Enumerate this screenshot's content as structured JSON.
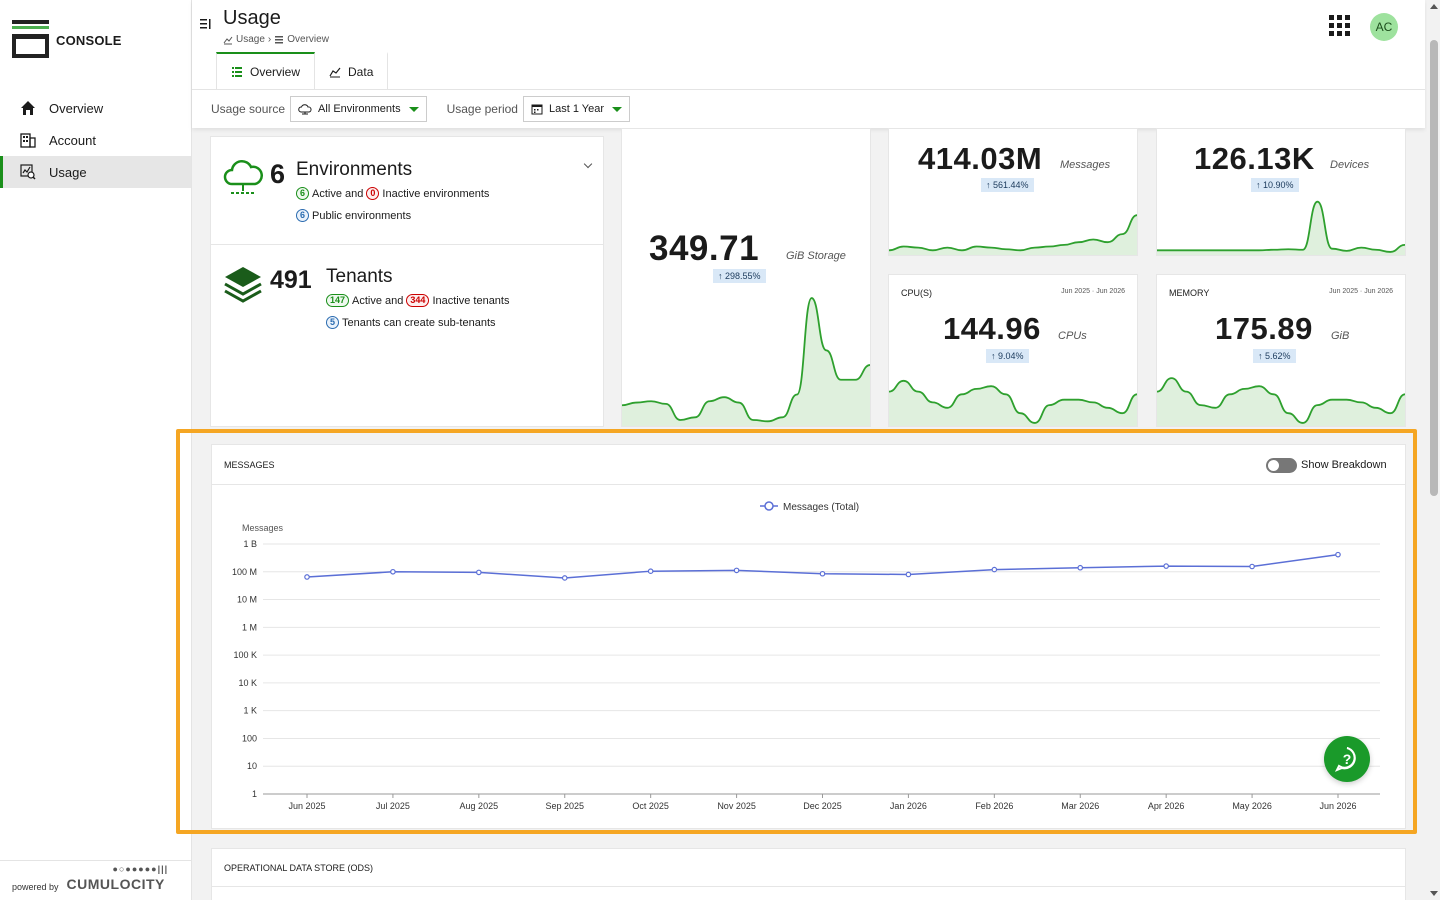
{
  "brand": {
    "name": "CONSOLE"
  },
  "sidebar": {
    "items": [
      {
        "label": "Overview",
        "icon": "home-icon"
      },
      {
        "label": "Account",
        "icon": "building-icon"
      },
      {
        "label": "Usage",
        "icon": "usage-chart-icon",
        "active": true
      }
    ],
    "powered_by": "powered by",
    "vendor": "CUMULOCITY",
    "vendor_dots": "●○●●●●●|||"
  },
  "header": {
    "title": "Usage",
    "breadcrumb": [
      "Usage",
      "Overview"
    ],
    "avatar_initials": "AC"
  },
  "tabs": [
    {
      "label": "Overview",
      "active": true
    },
    {
      "label": "Data",
      "active": false
    }
  ],
  "filters": {
    "source_label": "Usage source",
    "source_value": "All Environments",
    "period_label": "Usage period",
    "period_value": "Last 1 Year"
  },
  "environments": {
    "count": "6",
    "label": "Environments",
    "active_count": "6",
    "active_text": "Active and",
    "inactive_count": "0",
    "inactive_text": "Inactive environments",
    "public_count": "6",
    "public_text": "Public environments"
  },
  "tenants": {
    "count": "491",
    "label": "Tenants",
    "active_count": "147",
    "active_text": "Active and",
    "inactive_count": "344",
    "inactive_text": "Inactive tenants",
    "sub_count": "5",
    "sub_text": "Tenants can create sub-tenants"
  },
  "storage": {
    "value": "349.71",
    "unit": "GiB Storage",
    "change": "298.55%",
    "spark": [
      0.14,
      0.16,
      0.17,
      0.15,
      0.03,
      0.05,
      0.17,
      0.2,
      0.16,
      0.03,
      0.02,
      0.05,
      0.22,
      0.94,
      0.55,
      0.33,
      0.33,
      0.44
    ]
  },
  "messages_metric": {
    "value": "414.03M",
    "unit": "Messages",
    "change": "561.44%",
    "spark": [
      0.05,
      0.12,
      0.1,
      0.05,
      0.1,
      0.05,
      0.12,
      0.1,
      0.07,
      0.05,
      0.1,
      0.12,
      0.15,
      0.2,
      0.25,
      0.2,
      0.35,
      0.7
    ]
  },
  "devices_metric": {
    "value": "126.13K",
    "unit": "Devices",
    "change": "10.90%",
    "spark": [
      0.05,
      0.05,
      0.05,
      0.05,
      0.05,
      0.05,
      0.05,
      0.05,
      0.06,
      0.07,
      0.06,
      0.95,
      0.08,
      0.04,
      0.1,
      0.06,
      0.02,
      0.15
    ]
  },
  "cpu_metric": {
    "title": "CPU(S)",
    "range": "Jun 2025 · Jun 2026",
    "value": "144.96",
    "unit": "CPUs",
    "change": "9.04%",
    "spark": [
      0.6,
      0.8,
      0.6,
      0.4,
      0.3,
      0.55,
      0.65,
      0.7,
      0.55,
      0.2,
      0.02,
      0.35,
      0.45,
      0.45,
      0.4,
      0.3,
      0.2,
      0.55
    ]
  },
  "memory_metric": {
    "title": "MEMORY",
    "range": "Jun 2025 · Jun 2026",
    "value": "175.89",
    "unit": "GiB",
    "change": "5.62%",
    "spark": [
      0.6,
      0.85,
      0.6,
      0.35,
      0.3,
      0.55,
      0.65,
      0.7,
      0.55,
      0.2,
      0.02,
      0.35,
      0.45,
      0.45,
      0.4,
      0.3,
      0.2,
      0.55
    ]
  },
  "messages_chart": {
    "title": "MESSAGES",
    "toggle_label": "Show Breakdown"
  },
  "ods": {
    "title": "OPERATIONAL DATA STORE (ODS)"
  },
  "chart_data": {
    "type": "line",
    "title": "",
    "ylabel": "Messages",
    "xlabel": "",
    "y_scale": "log",
    "ylim": [
      1,
      1000000000
    ],
    "y_ticks": [
      "1",
      "10",
      "100",
      "1 K",
      "10 K",
      "100 K",
      "1 M",
      "10 M",
      "100 M",
      "1 B"
    ],
    "categories": [
      "Jun 2025",
      "Jul 2025",
      "Aug 2025",
      "Sep 2025",
      "Oct 2025",
      "Nov 2025",
      "Dec 2025",
      "Jan 2026",
      "Feb 2026",
      "Mar 2026",
      "Apr 2026",
      "May 2026",
      "Jun 2026"
    ],
    "series": [
      {
        "name": "Messages (Total)",
        "color": "#5b6fd6",
        "values": [
          65000000,
          100000000,
          95000000,
          60000000,
          105000000,
          112000000,
          85000000,
          80000000,
          120000000,
          140000000,
          160000000,
          155000000,
          414000000
        ]
      }
    ],
    "legend": "top-center",
    "grid": true
  }
}
